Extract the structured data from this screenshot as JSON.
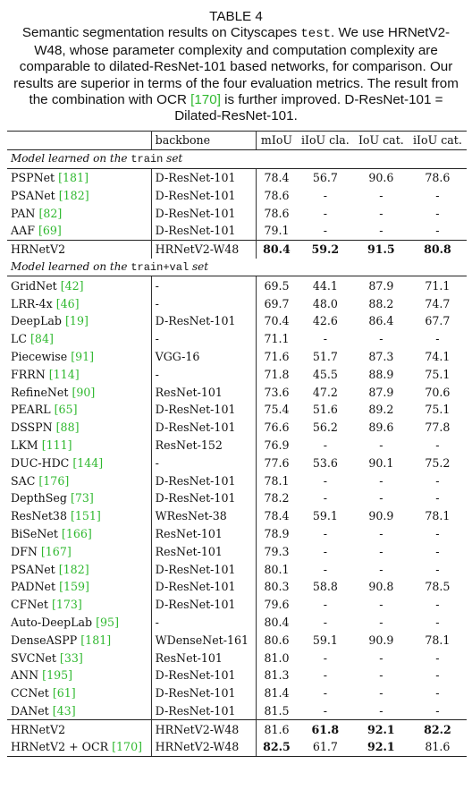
{
  "caption": {
    "title": "TABLE 4",
    "parts": [
      {
        "text": "Semantic segmentation results on Cityscapes "
      },
      {
        "text": "test",
        "style": "mono"
      },
      {
        "text": ". We use HRNetV2-W48, whose parameter complexity and computation complexity are comparable to dilated-ResNet-101 based networks, for comparison. Our results are superior in terms of the four evaluation metrics. The result from the combination with OCR "
      },
      {
        "text": "[170]",
        "style": "ref"
      },
      {
        "text": " is further improved. D-ResNet-101 = Dilated-ResNet-101."
      }
    ]
  },
  "table": {
    "header": [
      "backbone",
      "mIoU",
      "iIoU cla.",
      "IoU cat.",
      "iIoU cat."
    ],
    "sections": [
      {
        "title": [
          {
            "text": "Model learned on the "
          },
          {
            "text": "train",
            "style": "mono"
          },
          {
            "text": " set"
          }
        ],
        "rows": [
          {
            "method": "PSPNet",
            "ref": "[181]",
            "backbone": "D-ResNet-101",
            "cells": [
              "78.4",
              "56.7",
              "90.6",
              "78.6"
            ]
          },
          {
            "method": "PSANet",
            "ref": "[182]",
            "backbone": "D-ResNet-101",
            "cells": [
              "78.6",
              "-",
              "-",
              "-"
            ]
          },
          {
            "method": "PAN",
            "ref": "[82]",
            "backbone": "D-ResNet-101",
            "cells": [
              "78.6",
              "-",
              "-",
              "-"
            ]
          },
          {
            "method": "AAF",
            "ref": "[69]",
            "backbone": "D-ResNet-101",
            "cells": [
              "79.1",
              "-",
              "-",
              "-"
            ]
          }
        ],
        "ours": [
          {
            "method": "HRNetV2",
            "backbone": "HRNetV2-W48",
            "cells": [
              "80.4",
              "59.2",
              "91.5",
              "80.8"
            ],
            "bold": [
              true,
              true,
              true,
              true
            ]
          }
        ]
      },
      {
        "title": [
          {
            "text": "Model learned on the "
          },
          {
            "text": "train+val",
            "style": "mono"
          },
          {
            "text": " set"
          }
        ],
        "rows": [
          {
            "method": "GridNet",
            "ref": "[42]",
            "backbone": "-",
            "cells": [
              "69.5",
              "44.1",
              "87.9",
              "71.1"
            ]
          },
          {
            "method": "LRR-4x",
            "ref": "[46]",
            "backbone": "-",
            "cells": [
              "69.7",
              "48.0",
              "88.2",
              "74.7"
            ]
          },
          {
            "method": "DeepLab",
            "ref": "[19]",
            "backbone": "D-ResNet-101",
            "cells": [
              "70.4",
              "42.6",
              "86.4",
              "67.7"
            ]
          },
          {
            "method": "LC",
            "ref": "[84]",
            "backbone": "-",
            "cells": [
              "71.1",
              "-",
              "-",
              "-"
            ]
          },
          {
            "method": "Piecewise",
            "ref": "[91]",
            "backbone": "VGG-16",
            "cells": [
              "71.6",
              "51.7",
              "87.3",
              "74.1"
            ]
          },
          {
            "method": "FRRN",
            "ref": "[114]",
            "backbone": "-",
            "cells": [
              "71.8",
              "45.5",
              "88.9",
              "75.1"
            ]
          },
          {
            "method": "RefineNet",
            "ref": "[90]",
            "backbone": "ResNet-101",
            "cells": [
              "73.6",
              "47.2",
              "87.9",
              "70.6"
            ]
          },
          {
            "method": "PEARL",
            "ref": "[65]",
            "backbone": "D-ResNet-101",
            "cells": [
              "75.4",
              "51.6",
              "89.2",
              "75.1"
            ]
          },
          {
            "method": "DSSPN",
            "ref": "[88]",
            "backbone": "D-ResNet-101",
            "cells": [
              "76.6",
              "56.2",
              "89.6",
              "77.8"
            ]
          },
          {
            "method": "LKM",
            "ref": "[111]",
            "backbone": "ResNet-152",
            "cells": [
              "76.9",
              "-",
              "-",
              "-"
            ]
          },
          {
            "method": "DUC-HDC",
            "ref": "[144]",
            "backbone": "-",
            "cells": [
              "77.6",
              "53.6",
              "90.1",
              "75.2"
            ]
          },
          {
            "method": "SAC",
            "ref": "[176]",
            "backbone": "D-ResNet-101",
            "cells": [
              "78.1",
              "-",
              "-",
              "-"
            ]
          },
          {
            "method": "DepthSeg",
            "ref": "[73]",
            "backbone": "D-ResNet-101",
            "cells": [
              "78.2",
              "-",
              "-",
              "-"
            ]
          },
          {
            "method": "ResNet38",
            "ref": "[151]",
            "backbone": "WResNet-38",
            "cells": [
              "78.4",
              "59.1",
              "90.9",
              "78.1"
            ]
          },
          {
            "method": "BiSeNet",
            "ref": "[166]",
            "backbone": "ResNet-101",
            "cells": [
              "78.9",
              "-",
              "-",
              "-"
            ]
          },
          {
            "method": "DFN",
            "ref": "[167]",
            "backbone": "ResNet-101",
            "cells": [
              "79.3",
              "-",
              "-",
              "-"
            ]
          },
          {
            "method": "PSANet",
            "ref": "[182]",
            "backbone": "D-ResNet-101",
            "cells": [
              "80.1",
              "-",
              "-",
              "-"
            ]
          },
          {
            "method": "PADNet",
            "ref": "[159]",
            "backbone": "D-ResNet-101",
            "cells": [
              "80.3",
              "58.8",
              "90.8",
              "78.5"
            ]
          },
          {
            "method": "CFNet",
            "ref": "[173]",
            "backbone": "D-ResNet-101",
            "cells": [
              "79.6",
              "-",
              "-",
              "-"
            ]
          },
          {
            "method": "Auto-DeepLab",
            "ref": "[95]",
            "backbone": "-",
            "cells": [
              "80.4",
              "-",
              "-",
              "-"
            ]
          },
          {
            "method": "DenseASPP",
            "ref": "[181]",
            "backbone": "WDenseNet-161",
            "cells": [
              "80.6",
              "59.1",
              "90.9",
              "78.1"
            ]
          },
          {
            "method": "SVCNet",
            "ref": "[33]",
            "backbone": "ResNet-101",
            "cells": [
              "81.0",
              "-",
              "-",
              "-"
            ]
          },
          {
            "method": "ANN",
            "ref": "[195]",
            "backbone": "D-ResNet-101",
            "cells": [
              "81.3",
              "-",
              "-",
              "-"
            ]
          },
          {
            "method": "CCNet",
            "ref": "[61]",
            "backbone": "D-ResNet-101",
            "cells": [
              "81.4",
              "-",
              "-",
              "-"
            ]
          },
          {
            "method": "DANet",
            "ref": "[43]",
            "backbone": "D-ResNet-101",
            "cells": [
              "81.5",
              "-",
              "-",
              "-"
            ]
          }
        ],
        "ours": [
          {
            "method": "HRNetV2",
            "backbone": "HRNetV2-W48",
            "cells": [
              "81.6",
              "61.8",
              "92.1",
              "82.2"
            ],
            "bold": [
              false,
              true,
              true,
              true
            ]
          },
          {
            "method": "HRNetV2 + OCR",
            "ref": "[170]",
            "backbone": "HRNetV2-W48",
            "cells": [
              "82.5",
              "61.7",
              "92.1",
              "81.6"
            ],
            "bold": [
              true,
              false,
              true,
              false
            ]
          }
        ]
      }
    ]
  }
}
